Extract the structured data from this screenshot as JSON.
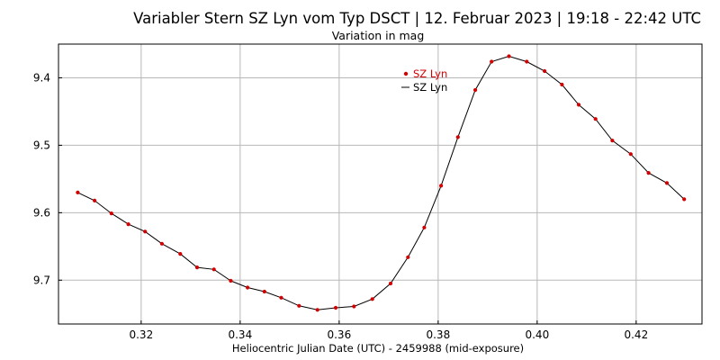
{
  "chart_data": {
    "type": "line",
    "title": "Variabler Stern SZ Lyn vom Typ DSCT | 12. Februar 2023 | 19:18 - 22:42 UTC",
    "subtitle": "Variation in mag",
    "xlabel": "Heliocentric Julian Date (UTC) - 2459988 (mid-exposure)",
    "ylabel": "",
    "xlim": [
      0.3033,
      0.4333
    ],
    "ylim": [
      9.35,
      9.765
    ],
    "y_inverted": true,
    "xticks": [
      0.32,
      0.34,
      0.36,
      0.38,
      0.4,
      0.42
    ],
    "xtick_labels": [
      "0.32",
      "0.34",
      "0.36",
      "0.38",
      "0.40",
      "0.42"
    ],
    "yticks": [
      9.4,
      9.5,
      9.6,
      9.7
    ],
    "ytick_labels": [
      "9.4",
      "9.5",
      "9.6",
      "9.7"
    ],
    "grid": true,
    "legend_position": "top-center",
    "legend": [
      {
        "label": "SZ Lyn",
        "marker": "point",
        "color": "#d40000"
      },
      {
        "label": "SZ Lyn",
        "marker": "line",
        "color": "#000000"
      }
    ],
    "series": [
      {
        "name": "SZ Lyn",
        "color": "#d40000",
        "line_color": "#000000",
        "x": [
          0.3072,
          0.3106,
          0.314,
          0.3174,
          0.3208,
          0.3242,
          0.3279,
          0.3313,
          0.3347,
          0.3381,
          0.3415,
          0.3449,
          0.3483,
          0.3519,
          0.3556,
          0.3593,
          0.363,
          0.3667,
          0.3704,
          0.3739,
          0.3772,
          0.3806,
          0.384,
          0.3875,
          0.3908,
          0.3943,
          0.3979,
          0.4015,
          0.405,
          0.4084,
          0.4118,
          0.4152,
          0.4189,
          0.4225,
          0.4262,
          0.4297
        ],
        "y": [
          9.57,
          9.582,
          9.601,
          9.617,
          9.628,
          9.646,
          9.661,
          9.681,
          9.684,
          9.701,
          9.711,
          9.717,
          9.726,
          9.738,
          9.744,
          9.741,
          9.739,
          9.728,
          9.705,
          9.666,
          9.622,
          9.56,
          9.488,
          9.418,
          9.376,
          9.368,
          9.376,
          9.39,
          9.41,
          9.44,
          9.461,
          9.493,
          9.513,
          9.541,
          9.556,
          9.58
        ]
      }
    ]
  }
}
